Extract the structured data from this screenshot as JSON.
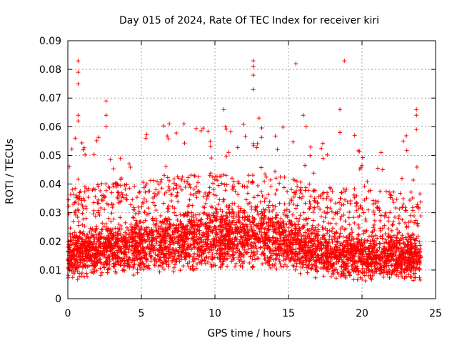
{
  "chart_data": {
    "type": "scatter",
    "title": "Day 015 of 2024, Rate Of TEC Index for receiver kiri",
    "xlabel": "GPS time / hours",
    "ylabel": "ROTI / TECUs",
    "xlim": [
      0,
      25
    ],
    "ylim": [
      0,
      0.09
    ],
    "xticks": [
      0,
      5,
      10,
      15,
      20,
      25
    ],
    "xtick_labels": [
      "0",
      "5",
      "10",
      "15",
      "20",
      "25"
    ],
    "yticks": [
      0,
      0.01,
      0.02,
      0.03,
      0.04,
      0.05,
      0.06,
      0.07,
      0.08,
      0.09
    ],
    "ytick_labels": [
      "0",
      "0.01",
      "0.02",
      "0.03",
      "0.04",
      "0.05",
      "0.06",
      "0.07",
      "0.08",
      "0.09"
    ],
    "grid": true,
    "marker": "+",
    "marker_color": "#ff0000",
    "data_range": [
      0,
      24
    ],
    "series": [
      {
        "name": "ROTI",
        "outliers": [
          {
            "x": 0.7,
            "y": 0.083
          },
          {
            "x": 0.7,
            "y": 0.079
          },
          {
            "x": 0.7,
            "y": 0.075
          },
          {
            "x": 0.5,
            "y": 0.056
          },
          {
            "x": 0.7,
            "y": 0.064
          },
          {
            "x": 0.7,
            "y": 0.062
          },
          {
            "x": 2.6,
            "y": 0.069
          },
          {
            "x": 2.6,
            "y": 0.064
          },
          {
            "x": 2.6,
            "y": 0.06
          },
          {
            "x": 5.3,
            "y": 0.056
          },
          {
            "x": 6.9,
            "y": 0.061
          },
          {
            "x": 7.9,
            "y": 0.061
          },
          {
            "x": 10.6,
            "y": 0.066
          },
          {
            "x": 12.6,
            "y": 0.083
          },
          {
            "x": 12.6,
            "y": 0.081
          },
          {
            "x": 12.6,
            "y": 0.078
          },
          {
            "x": 12.6,
            "y": 0.073
          },
          {
            "x": 13.0,
            "y": 0.063
          },
          {
            "x": 15.5,
            "y": 0.082
          },
          {
            "x": 16.0,
            "y": 0.064
          },
          {
            "x": 16.2,
            "y": 0.06
          },
          {
            "x": 18.5,
            "y": 0.066
          },
          {
            "x": 18.8,
            "y": 0.083
          },
          {
            "x": 18.5,
            "y": 0.058
          },
          {
            "x": 19.5,
            "y": 0.057
          },
          {
            "x": 23.7,
            "y": 0.066
          },
          {
            "x": 23.7,
            "y": 0.064
          },
          {
            "x": 23.7,
            "y": 0.059
          },
          {
            "x": 22.8,
            "y": 0.055
          },
          {
            "x": 0.1,
            "y": 0.046
          },
          {
            "x": 21.3,
            "y": 0.051
          }
        ],
        "baseline": [
          {
            "x": 0,
            "y": 0.012
          },
          {
            "x": 2,
            "y": 0.014
          },
          {
            "x": 4,
            "y": 0.015
          },
          {
            "x": 6,
            "y": 0.016
          },
          {
            "x": 8,
            "y": 0.017
          },
          {
            "x": 10,
            "y": 0.018
          },
          {
            "x": 12,
            "y": 0.019
          },
          {
            "x": 14,
            "y": 0.018
          },
          {
            "x": 15.5,
            "y": 0.016
          },
          {
            "x": 17,
            "y": 0.013
          },
          {
            "x": 20,
            "y": 0.012
          },
          {
            "x": 24,
            "y": 0.012
          }
        ]
      }
    ]
  }
}
